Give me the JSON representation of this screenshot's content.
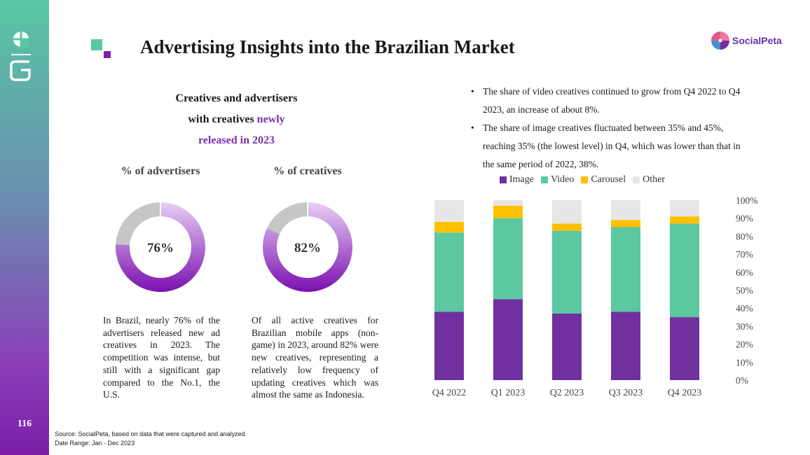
{
  "page": {
    "number": "116",
    "title": "Advertising Insights into the Brazilian Market"
  },
  "logo": {
    "text": "SocialPeta"
  },
  "creatives_section": {
    "line1": "Creatives and advertisers",
    "line2_prefix": "with creatives ",
    "line2_accent": "newly",
    "line3_accent": "released in 2023"
  },
  "donuts": [
    {
      "label": "% of advertisers",
      "value_text": "76%",
      "value": 76
    },
    {
      "label": "% of creatives",
      "value_text": "82%",
      "value": 82
    }
  ],
  "descriptions": {
    "advertisers": "In Brazil, nearly 76% of the advertisers released new ad creatives in 2023. The competition was intense, but still with a significant gap compared to the No.1, the U.S.",
    "creatives": "Of all active creatives for Brazilian mobile apps (non-game) in 2023, around 82% were new creatives, representing a relatively low frequency of updating creatives which was almost the same as Indonesia."
  },
  "bullets": [
    "The share of video creatives continued to grow from Q4 2022 to Q4 2023, an increase of about 8%.",
    "The share of image creatives fluctuated between 35% and 45%, reaching 35% (the lowest level) in Q4, which was lower than that in the same period of 2022, 38%."
  ],
  "colors": {
    "image": "#7030a0",
    "video": "#5bc8a0",
    "carousel": "#ffc000",
    "other": "#e6e6e8",
    "donut_rest": "#c8c8c8"
  },
  "chart_data": {
    "type": "bar",
    "stacked": true,
    "categories": [
      "Q4 2022",
      "Q1 2023",
      "Q2 2023",
      "Q3 2023",
      "Q4 2023"
    ],
    "series": [
      {
        "name": "Image",
        "values": [
          38,
          45,
          37,
          38,
          35
        ]
      },
      {
        "name": "Video",
        "values": [
          44,
          45,
          46,
          47,
          52
        ]
      },
      {
        "name": "Carousel",
        "values": [
          6,
          7,
          4,
          4,
          4
        ]
      },
      {
        "name": "Other",
        "values": [
          12,
          3,
          13,
          11,
          9
        ]
      }
    ],
    "ylim": [
      0,
      100
    ],
    "yticks": [
      "0%",
      "10%",
      "20%",
      "30%",
      "40%",
      "50%",
      "60%",
      "70%",
      "80%",
      "90%",
      "100%"
    ],
    "legend_position": "top",
    "grid": false
  },
  "source": {
    "line1": "Source: SocialPeta, based on data that were captured and analyzed.",
    "line2": "Date Range: Jan - Dec 2023"
  }
}
